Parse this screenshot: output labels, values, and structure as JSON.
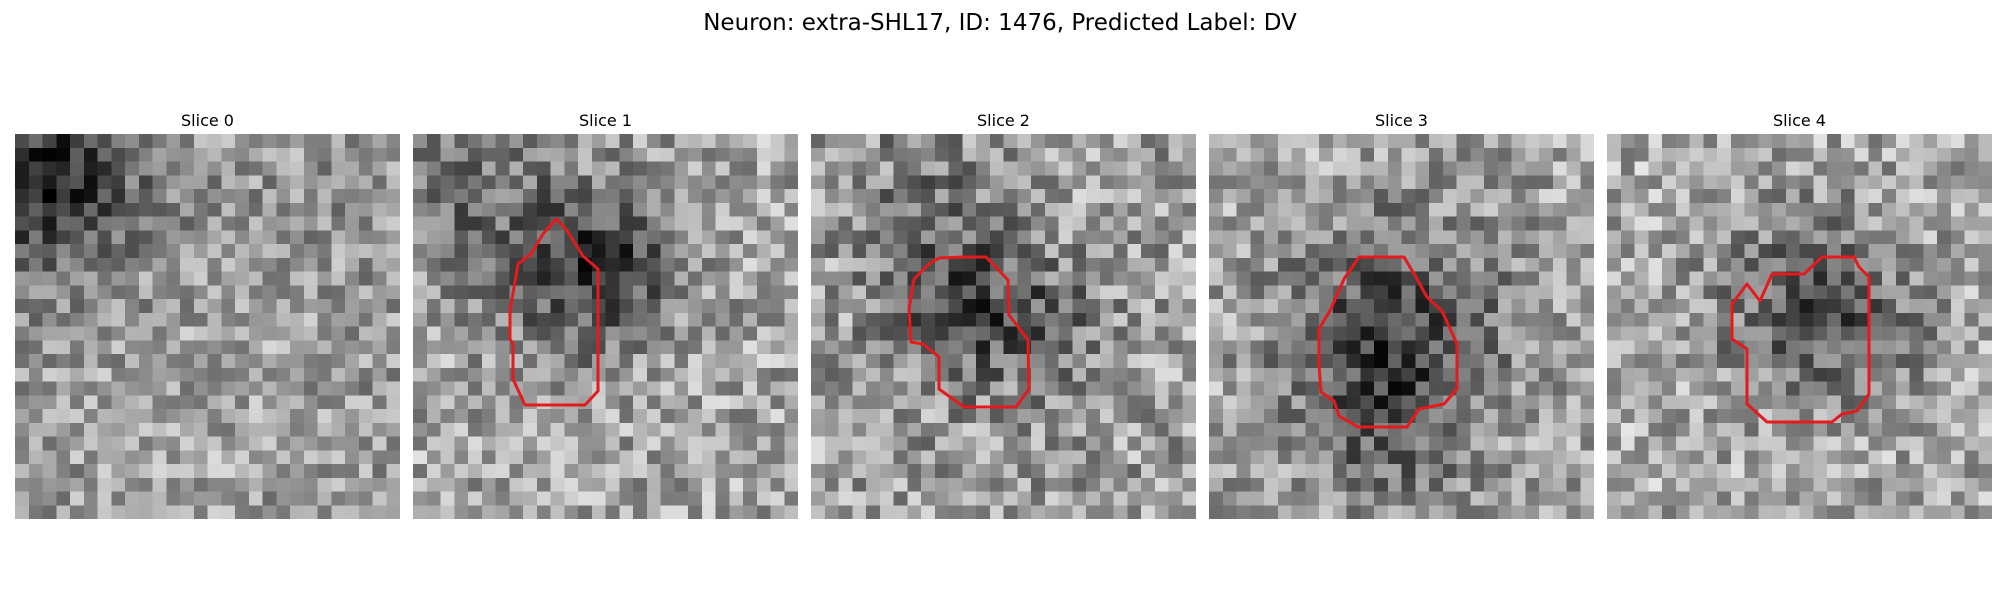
{
  "figure": {
    "title": "Neuron: extra-SHL17, ID: 1476, Predicted Label: DV"
  },
  "panels": [
    {
      "title": "Slice 0",
      "has_contour": false
    },
    {
      "title": "Slice 1",
      "has_contour": true
    },
    {
      "title": "Slice 2",
      "has_contour": true
    },
    {
      "title": "Slice 3",
      "has_contour": true
    },
    {
      "title": "Slice 4",
      "has_contour": true
    }
  ],
  "colors": {
    "contour": "#e41a1c",
    "background": "#ffffff"
  }
}
